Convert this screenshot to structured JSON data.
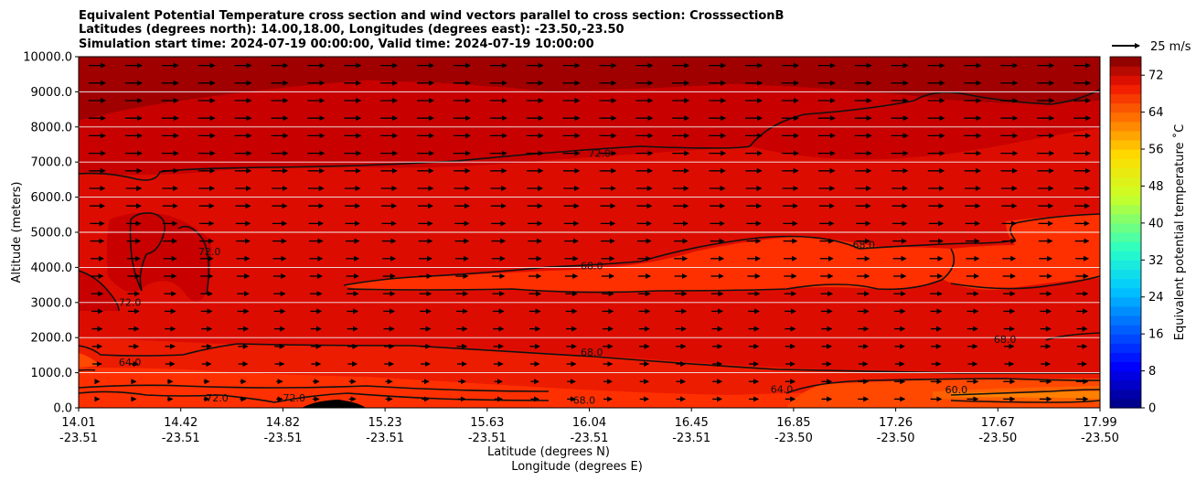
{
  "chart_data": {
    "type": "contour",
    "title_lines": [
      "Equivalent Potential Temperature cross section and wind vectors parallel to cross section: CrosssectionB",
      "Latitudes (degrees north): 14.00,18.00, Longitudes (degrees east): -23.50,-23.50",
      "Simulation start time: 2024-07-19 00:00:00, Valid time: 2024-07-19 10:00:00"
    ],
    "ylabel": "Altitude (meters)",
    "xlabel_lat": "Latitude (degrees N)",
    "xlabel_lon": "Longitude (degrees E)",
    "ylim": [
      0,
      10000
    ],
    "yticks": [
      "0.0",
      "1000.0",
      "2000.0",
      "3000.0",
      "4000.0",
      "5000.0",
      "6000.0",
      "7000.0",
      "8000.0",
      "9000.0",
      "10000.0"
    ],
    "x_range": [
      14.01,
      17.99
    ],
    "xticks": [
      {
        "lat": "14.01",
        "lon": "-23.51"
      },
      {
        "lat": "14.42",
        "lon": "-23.51"
      },
      {
        "lat": "14.82",
        "lon": "-23.51"
      },
      {
        "lat": "15.23",
        "lon": "-23.51"
      },
      {
        "lat": "15.63",
        "lon": "-23.51"
      },
      {
        "lat": "16.04",
        "lon": "-23.51"
      },
      {
        "lat": "16.45",
        "lon": "-23.51"
      },
      {
        "lat": "16.85",
        "lon": "-23.50"
      },
      {
        "lat": "17.26",
        "lon": "-23.50"
      },
      {
        "lat": "17.67",
        "lon": "-23.50"
      },
      {
        "lat": "17.99",
        "lon": "-23.50"
      }
    ],
    "colorbar": {
      "label": "Equivalent potential temperature ˚C",
      "min": 0,
      "max": 76,
      "step": 2,
      "ticks": [
        "0",
        "8",
        "16",
        "24",
        "32",
        "40",
        "48",
        "56",
        "64",
        "72"
      ]
    },
    "contour_labels": [
      {
        "text": "72.0",
        "x": 16.04,
        "y": 7150
      },
      {
        "text": "72.0",
        "x": 14.52,
        "y": 4350
      },
      {
        "text": "72.0",
        "x": 14.21,
        "y": 2900
      },
      {
        "text": "68.0",
        "x": 16.01,
        "y": 3950
      },
      {
        "text": "68.0",
        "x": 17.07,
        "y": 4550
      },
      {
        "text": "68.0",
        "x": 16.01,
        "y": 1480
      },
      {
        "text": "68.0",
        "x": 17.62,
        "y": 1850
      },
      {
        "text": "68.0",
        "x": 15.98,
        "y": 120
      },
      {
        "text": "64.0",
        "x": 14.21,
        "y": 1200
      },
      {
        "text": "64.0",
        "x": 16.75,
        "y": 430
      },
      {
        "text": "72.0",
        "x": 14.55,
        "y": 180
      },
      {
        "text": "72.0",
        "x": 14.85,
        "y": 180
      },
      {
        "text": "60.0",
        "x": 17.43,
        "y": 420
      }
    ],
    "wind_key_label": "25 m/s",
    "colors": {
      "c76": "#a00000",
      "c74": "#c80000",
      "c72": "#dc0d00",
      "c70": "#ec1c00",
      "c68": "#ff3000",
      "c66": "#ff4800",
      "c64": "#ff6000",
      "c62": "#ff8000",
      "terrain": "#000000",
      "contour": "#111111"
    }
  }
}
